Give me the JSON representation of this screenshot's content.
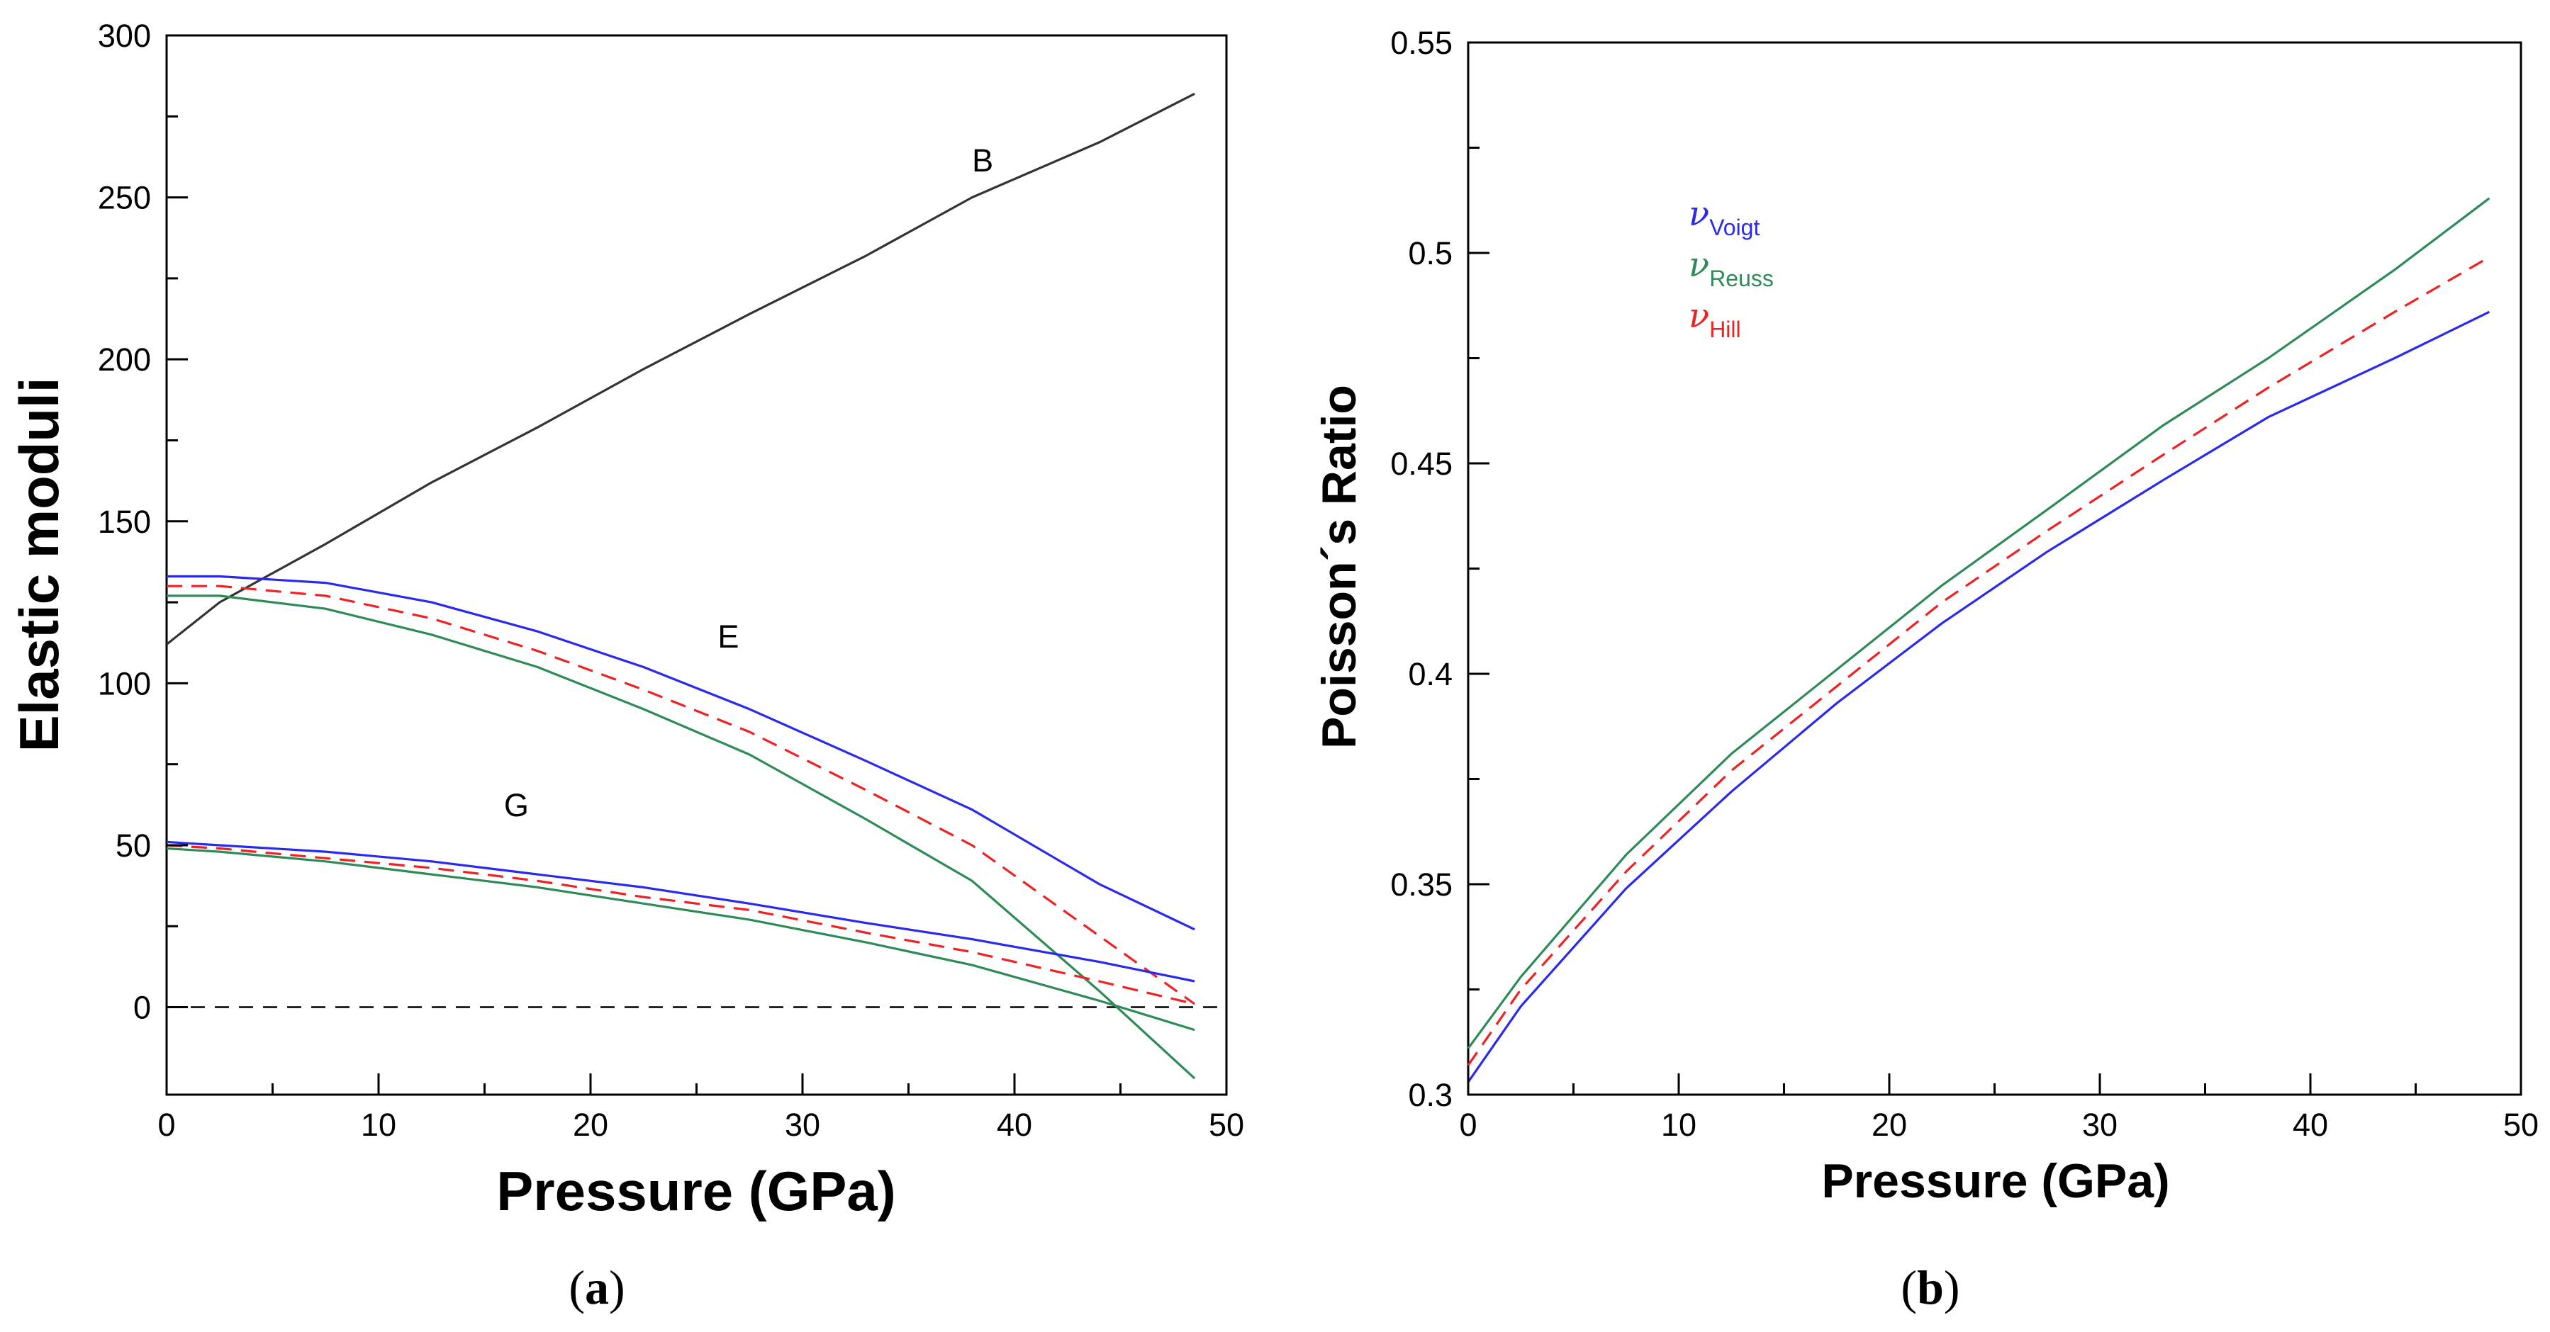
{
  "chart_data": [
    {
      "type": "line",
      "xlabel": "Pressure (GPa)",
      "ylabel": "Elastic moduli",
      "xlim": [
        0,
        50
      ],
      "ylim": [
        -27,
        300
      ],
      "xticks": [
        0,
        10,
        20,
        30,
        40,
        50
      ],
      "yticks": [
        0,
        50,
        100,
        150,
        200,
        250,
        300
      ],
      "grid": false,
      "caption_letter": "a",
      "annotations": [
        {
          "text": "B",
          "x": 38.5,
          "y": 258
        },
        {
          "text": "E",
          "x": 26.5,
          "y": 111
        },
        {
          "text": "G",
          "x": 16.5,
          "y": 59
        }
      ],
      "zero_line": {
        "y": 0,
        "style": "dashed"
      },
      "series": [
        {
          "curve": "B",
          "color": "#333333",
          "dash": "solid",
          "x": [
            0,
            2.5,
            7.5,
            12.5,
            17.5,
            22.5,
            27.5,
            33,
            38,
            44,
            48.5
          ],
          "y": [
            112,
            125,
            143,
            162,
            179,
            197,
            214,
            232,
            250,
            267,
            282
          ]
        },
        {
          "curve": "E Voigt",
          "color": "#2a2aee",
          "dash": "solid",
          "x": [
            0,
            2.5,
            7.5,
            12.5,
            17.5,
            22.5,
            27.5,
            33,
            38,
            44,
            48.5
          ],
          "y": [
            133,
            133,
            131,
            125,
            116,
            105,
            92,
            76,
            61,
            38,
            24
          ]
        },
        {
          "curve": "E Reuss",
          "color": "#2e8b57",
          "dash": "solid",
          "x": [
            0,
            2.5,
            7.5,
            12.5,
            17.5,
            22.5,
            27.5,
            33,
            38,
            44,
            48.5
          ],
          "y": [
            127,
            127,
            123,
            115,
            105,
            92,
            78,
            58,
            39,
            5,
            -22
          ]
        },
        {
          "curve": "E Hill",
          "color": "#ee2222",
          "dash": "dashed",
          "x": [
            0,
            2.5,
            7.5,
            12.5,
            17.5,
            22.5,
            27.5,
            33,
            38,
            44,
            48.5
          ],
          "y": [
            130,
            130,
            127,
            120,
            110,
            98,
            85,
            67,
            50,
            22,
            1
          ]
        },
        {
          "curve": "G Voigt",
          "color": "#2a2aee",
          "dash": "solid",
          "x": [
            0,
            2.5,
            7.5,
            12.5,
            17.5,
            22.5,
            27.5,
            33,
            38,
            44,
            48.5
          ],
          "y": [
            51,
            50,
            48,
            45,
            41,
            37,
            32,
            26,
            21,
            14,
            8
          ]
        },
        {
          "curve": "G Reuss",
          "color": "#2e8b57",
          "dash": "solid",
          "x": [
            0,
            2.5,
            7.5,
            12.5,
            17.5,
            22.5,
            27.5,
            33,
            38,
            44,
            48.5
          ],
          "y": [
            49,
            48,
            45,
            41,
            37,
            32,
            27,
            20,
            13,
            2,
            -7
          ]
        },
        {
          "curve": "G Hill",
          "color": "#ee2222",
          "dash": "dashed",
          "x": [
            0,
            2.5,
            7.5,
            12.5,
            17.5,
            22.5,
            27.5,
            33,
            38,
            44,
            48.5
          ],
          "y": [
            50,
            49,
            46,
            43,
            39,
            34,
            30,
            23,
            17,
            8,
            1
          ]
        }
      ]
    },
    {
      "type": "line",
      "xlabel": "Pressure (GPa)",
      "ylabel": "Poisson´s Ratio",
      "xlim": [
        0,
        50
      ],
      "ylim": [
        0.3,
        0.55
      ],
      "xticks": [
        0,
        10,
        20,
        30,
        40,
        50
      ],
      "yticks": [
        0.3,
        0.35,
        0.4,
        0.45,
        0.5,
        0.55
      ],
      "ytick_labels": [
        "0.3",
        "0.35",
        "0.4",
        "0.45",
        "0.5",
        "0.55"
      ],
      "grid": false,
      "caption_letter": "b",
      "legend": {
        "position": "top-left"
      },
      "series": [
        {
          "symbol": "ν",
          "subscript": "Voigt",
          "color": "#2a2aee",
          "dash": "solid",
          "x": [
            0,
            2.5,
            7.5,
            12.5,
            17.5,
            22.5,
            27.5,
            33,
            38,
            44,
            48.5
          ],
          "y": [
            0.303,
            0.321,
            0.349,
            0.372,
            0.393,
            0.412,
            0.429,
            0.446,
            0.461,
            0.475,
            0.486
          ]
        },
        {
          "symbol": "ν",
          "subscript": "Reuss",
          "color": "#2e8b57",
          "dash": "solid",
          "x": [
            0,
            2.5,
            7.5,
            12.5,
            17.5,
            22.5,
            27.5,
            33,
            38,
            44,
            48.5
          ],
          "y": [
            0.311,
            0.328,
            0.357,
            0.381,
            0.401,
            0.421,
            0.439,
            0.459,
            0.475,
            0.496,
            0.513
          ]
        },
        {
          "symbol": "ν",
          "subscript": "Hill",
          "color": "#ee2222",
          "dash": "dashed",
          "x": [
            0,
            2.5,
            7.5,
            12.5,
            17.5,
            22.5,
            27.5,
            33,
            38,
            44,
            48.5
          ],
          "y": [
            0.307,
            0.325,
            0.353,
            0.377,
            0.397,
            0.417,
            0.434,
            0.452,
            0.468,
            0.486,
            0.499
          ]
        }
      ]
    }
  ]
}
